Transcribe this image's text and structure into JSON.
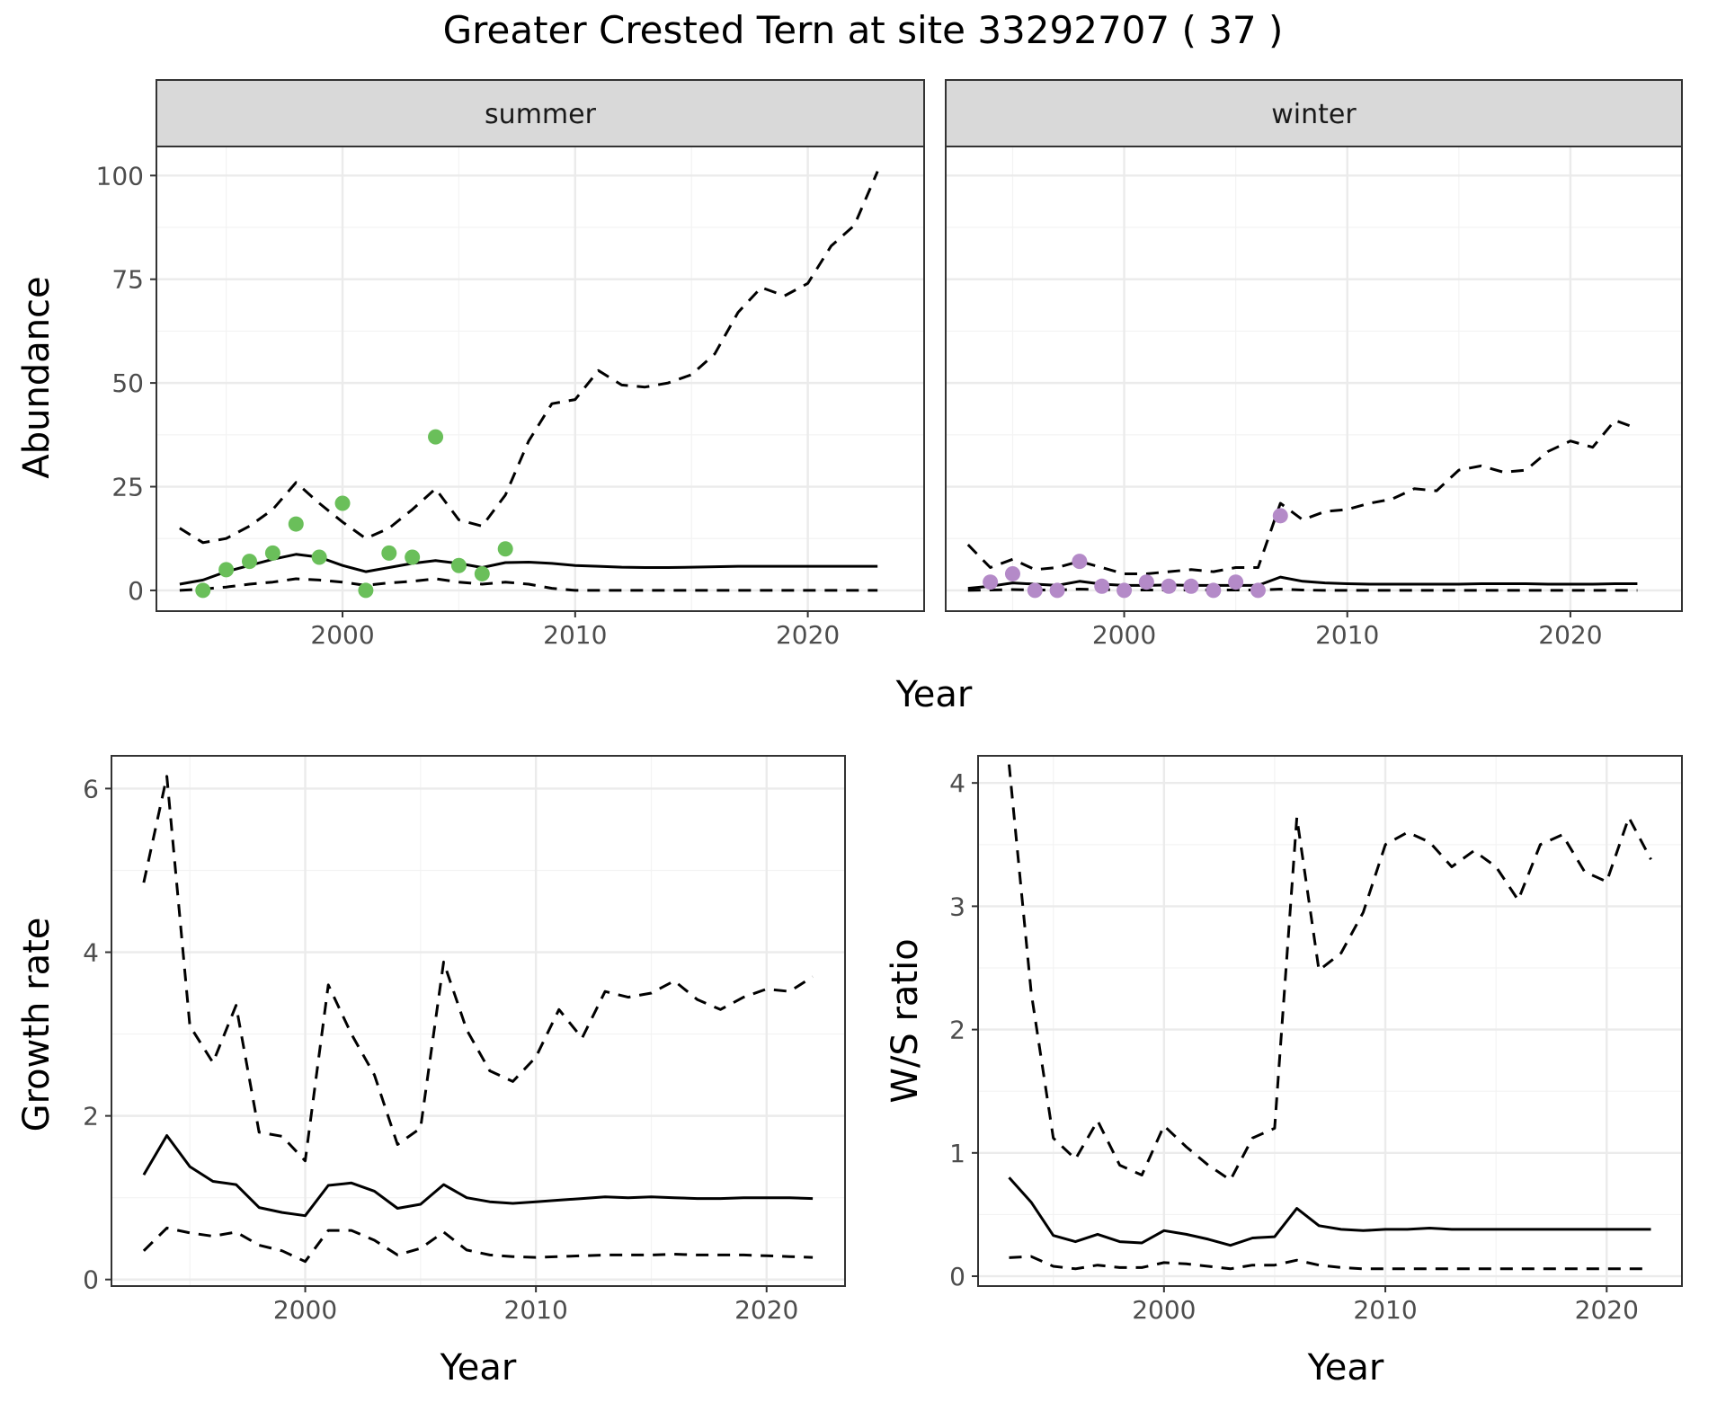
{
  "title": "Greater Crested Tern at site 33292707 ( 37 )",
  "colors": {
    "summer_points": "#6abf5a",
    "winter_points": "#b48ac8",
    "lines": "#000000"
  },
  "chart_data": [
    {
      "type": "line",
      "id": "abundance",
      "ylabel": "Abundance",
      "xlabel": "Year",
      "xlim": [
        1992,
        2025
      ],
      "ylim": [
        -5,
        107
      ],
      "x_ticks": [
        2000,
        2010,
        2020
      ],
      "y_ticks": [
        0,
        25,
        50,
        75,
        100
      ],
      "legend": "none",
      "facets": [
        {
          "strip": "summer",
          "point_color": "#6abf5a",
          "observations": {
            "x": [
              1994,
              1995,
              1996,
              1997,
              1998,
              1999,
              2000,
              2001,
              2002,
              2003,
              2004,
              2005,
              2006,
              2007
            ],
            "y": [
              0,
              5,
              7,
              9,
              16,
              8,
              21,
              0,
              9,
              8,
              37,
              6,
              4,
              10
            ]
          },
          "series": [
            {
              "role": "estimate",
              "x": [
                1993,
                1994,
                1995,
                1996,
                1997,
                1998,
                1999,
                2000,
                2001,
                2002,
                2003,
                2004,
                2005,
                2006,
                2007,
                2008,
                2009,
                2010,
                2011,
                2012,
                2013,
                2014,
                2015,
                2016,
                2017,
                2018,
                2019,
                2020,
                2021,
                2022,
                2023
              ],
              "y": [
                1.5,
                2.5,
                4.5,
                6,
                7.5,
                8.7,
                8,
                6,
                4.5,
                5.5,
                6.5,
                7.2,
                6.5,
                5.5,
                6.7,
                6.8,
                6.5,
                6,
                5.8,
                5.6,
                5.5,
                5.5,
                5.6,
                5.7,
                5.8,
                5.8,
                5.8,
                5.8,
                5.8,
                5.8,
                5.8
              ]
            },
            {
              "role": "upper",
              "x": [
                1993,
                1994,
                1995,
                1996,
                1997,
                1998,
                1999,
                2000,
                2001,
                2002,
                2003,
                2004,
                2005,
                2006,
                2007,
                2008,
                2009,
                2010,
                2011,
                2012,
                2013,
                2014,
                2015,
                2016,
                2017,
                2018,
                2019,
                2020,
                2021,
                2022,
                2023
              ],
              "y": [
                15,
                11.5,
                12.5,
                15.5,
                19.5,
                26,
                21,
                16.5,
                12.5,
                15,
                19.5,
                24.5,
                17,
                15.5,
                23,
                36,
                45,
                46,
                53,
                49.5,
                49,
                50,
                52,
                57,
                67,
                73,
                71,
                74,
                83,
                88,
                101
              ]
            },
            {
              "role": "lower",
              "x": [
                1993,
                1994,
                1995,
                1996,
                1997,
                1998,
                1999,
                2000,
                2001,
                2002,
                2003,
                2004,
                2005,
                2006,
                2007,
                2008,
                2009,
                2010,
                2011,
                2012,
                2013,
                2014,
                2015,
                2016,
                2017,
                2018,
                2019,
                2020,
                2021,
                2022,
                2023
              ],
              "y": [
                0,
                0.3,
                0.8,
                1.5,
                2,
                2.8,
                2.5,
                2,
                1.2,
                1.8,
                2.2,
                2.8,
                2,
                1.5,
                2,
                1.5,
                0.5,
                0,
                0,
                0,
                0,
                0,
                0,
                0,
                0,
                0,
                0,
                0,
                0,
                0,
                0
              ]
            }
          ]
        },
        {
          "strip": "winter",
          "point_color": "#b48ac8",
          "observations": {
            "x": [
              1994,
              1995,
              1996,
              1997,
              1998,
              1999,
              2000,
              2001,
              2002,
              2003,
              2004,
              2005,
              2006,
              2007
            ],
            "y": [
              2,
              4,
              0,
              0,
              7,
              1,
              0,
              2,
              1,
              1,
              0,
              2,
              0,
              18
            ]
          },
          "series": [
            {
              "role": "estimate",
              "x": [
                1993,
                1994,
                1995,
                1996,
                1997,
                1998,
                1999,
                2000,
                2001,
                2002,
                2003,
                2004,
                2005,
                2006,
                2007,
                2008,
                2009,
                2010,
                2011,
                2012,
                2013,
                2014,
                2015,
                2016,
                2017,
                2018,
                2019,
                2020,
                2021,
                2022,
                2023
              ],
              "y": [
                0.5,
                1,
                1.8,
                1.5,
                1.2,
                2.2,
                1.5,
                1.2,
                1.2,
                1.3,
                1.2,
                1.2,
                1.2,
                1.2,
                3.2,
                2.2,
                1.8,
                1.6,
                1.5,
                1.5,
                1.5,
                1.5,
                1.5,
                1.6,
                1.6,
                1.6,
                1.5,
                1.5,
                1.5,
                1.6,
                1.6
              ]
            },
            {
              "role": "upper",
              "x": [
                1993,
                1994,
                1995,
                1996,
                1997,
                1998,
                1999,
                2000,
                2001,
                2002,
                2003,
                2004,
                2005,
                2006,
                2007,
                2008,
                2009,
                2010,
                2011,
                2012,
                2013,
                2014,
                2015,
                2016,
                2017,
                2018,
                2019,
                2020,
                2021,
                2022,
                2023
              ],
              "y": [
                11,
                5.5,
                7.5,
                5,
                5.5,
                7,
                5.5,
                4,
                4,
                4.5,
                5,
                4.5,
                5.5,
                5.5,
                21,
                17,
                19,
                19.5,
                21,
                22,
                24.5,
                24,
                29,
                30,
                28.5,
                29,
                33.5,
                36,
                34.5,
                41,
                39
              ]
            },
            {
              "role": "lower",
              "x": [
                1993,
                1994,
                1995,
                1996,
                1997,
                1998,
                1999,
                2000,
                2001,
                2002,
                2003,
                2004,
                2005,
                2006,
                2007,
                2008,
                2009,
                2010,
                2011,
                2012,
                2013,
                2014,
                2015,
                2016,
                2017,
                2018,
                2019,
                2020,
                2021,
                2022,
                2023
              ],
              "y": [
                0,
                0.1,
                0.2,
                0.1,
                0.1,
                0.3,
                0.2,
                0.1,
                0.1,
                0.1,
                0.1,
                0.1,
                0.1,
                0.1,
                0.3,
                0.1,
                0,
                0,
                0,
                0,
                0,
                0,
                0,
                0,
                0,
                0,
                0,
                0,
                0,
                0,
                0
              ]
            }
          ]
        }
      ]
    },
    {
      "type": "line",
      "id": "growth",
      "ylabel": "Growth rate",
      "xlabel": "Year",
      "xlim": [
        1991.6,
        2023.4
      ],
      "ylim": [
        -0.08,
        6.4
      ],
      "x_ticks": [
        2000,
        2010,
        2020
      ],
      "y_ticks": [
        0,
        2,
        4,
        6
      ],
      "legend": "none",
      "series": [
        {
          "role": "estimate",
          "x": [
            1993,
            1994,
            1995,
            1996,
            1997,
            1998,
            1999,
            2000,
            2001,
            2002,
            2003,
            2004,
            2005,
            2006,
            2007,
            2008,
            2009,
            2010,
            2011,
            2012,
            2013,
            2014,
            2015,
            2016,
            2017,
            2018,
            2019,
            2020,
            2021,
            2022
          ],
          "y": [
            1.28,
            1.76,
            1.38,
            1.2,
            1.16,
            0.88,
            0.82,
            0.78,
            1.15,
            1.18,
            1.08,
            0.87,
            0.92,
            1.16,
            1.0,
            0.95,
            0.93,
            0.95,
            0.97,
            0.99,
            1.01,
            1.0,
            1.01,
            1.0,
            0.99,
            0.99,
            1.0,
            1.0,
            1.0,
            0.99
          ]
        },
        {
          "role": "upper",
          "x": [
            1993,
            1994,
            1995,
            1996,
            1997,
            1998,
            1999,
            2000,
            2001,
            2002,
            2003,
            2004,
            2005,
            2006,
            2007,
            2008,
            2009,
            2010,
            2011,
            2012,
            2013,
            2014,
            2015,
            2016,
            2017,
            2018,
            2019,
            2020,
            2021,
            2022
          ],
          "y": [
            4.85,
            6.15,
            3.1,
            2.65,
            3.35,
            1.8,
            1.75,
            1.45,
            3.6,
            3.0,
            2.5,
            1.65,
            1.85,
            3.88,
            3.05,
            2.55,
            2.42,
            2.72,
            3.3,
            2.95,
            3.52,
            3.45,
            3.5,
            3.65,
            3.42,
            3.3,
            3.45,
            3.55,
            3.52,
            3.7
          ]
        },
        {
          "role": "lower",
          "x": [
            1993,
            1994,
            1995,
            1996,
            1997,
            1998,
            1999,
            2000,
            2001,
            2002,
            2003,
            2004,
            2005,
            2006,
            2007,
            2008,
            2009,
            2010,
            2011,
            2012,
            2013,
            2014,
            2015,
            2016,
            2017,
            2018,
            2019,
            2020,
            2021,
            2022
          ],
          "y": [
            0.35,
            0.63,
            0.57,
            0.53,
            0.58,
            0.42,
            0.35,
            0.22,
            0.6,
            0.6,
            0.48,
            0.3,
            0.38,
            0.58,
            0.36,
            0.3,
            0.28,
            0.27,
            0.28,
            0.29,
            0.3,
            0.3,
            0.3,
            0.31,
            0.3,
            0.3,
            0.3,
            0.29,
            0.28,
            0.27
          ]
        }
      ]
    },
    {
      "type": "line",
      "id": "ratio",
      "ylabel": "W/S ratio",
      "xlabel": "Year",
      "xlim": [
        1991.6,
        2023.4
      ],
      "ylim": [
        -0.08,
        4.22
      ],
      "x_ticks": [
        2000,
        2010,
        2020
      ],
      "y_ticks": [
        0,
        1,
        2,
        3,
        4
      ],
      "legend": "none",
      "series": [
        {
          "role": "estimate",
          "x": [
            1993,
            1994,
            1995,
            1996,
            1997,
            1998,
            1999,
            2000,
            2001,
            2002,
            2003,
            2004,
            2005,
            2006,
            2007,
            2008,
            2009,
            2010,
            2011,
            2012,
            2013,
            2014,
            2015,
            2016,
            2017,
            2018,
            2019,
            2020,
            2021,
            2022
          ],
          "y": [
            0.8,
            0.6,
            0.33,
            0.28,
            0.34,
            0.28,
            0.27,
            0.37,
            0.34,
            0.3,
            0.25,
            0.31,
            0.32,
            0.55,
            0.41,
            0.38,
            0.37,
            0.38,
            0.38,
            0.39,
            0.38,
            0.38,
            0.38,
            0.38,
            0.38,
            0.38,
            0.38,
            0.38,
            0.38,
            0.38
          ]
        },
        {
          "role": "upper",
          "x": [
            1993,
            1994,
            1995,
            1996,
            1997,
            1998,
            1999,
            2000,
            2001,
            2002,
            2003,
            2004,
            2005,
            2006,
            2007,
            2008,
            2009,
            2010,
            2011,
            2012,
            2013,
            2014,
            2015,
            2016,
            2017,
            2018,
            2019,
            2020,
            2021,
            2022
          ],
          "y": [
            4.15,
            2.3,
            1.12,
            0.95,
            1.26,
            0.9,
            0.82,
            1.22,
            1.05,
            0.9,
            0.78,
            1.12,
            1.2,
            3.72,
            2.48,
            2.62,
            2.95,
            3.5,
            3.6,
            3.52,
            3.32,
            3.45,
            3.32,
            3.05,
            3.5,
            3.58,
            3.28,
            3.2,
            3.72,
            3.38
          ]
        },
        {
          "role": "lower",
          "x": [
            1993,
            1994,
            1995,
            1996,
            1997,
            1998,
            1999,
            2000,
            2001,
            2002,
            2003,
            2004,
            2005,
            2006,
            2007,
            2008,
            2009,
            2010,
            2011,
            2012,
            2013,
            2014,
            2015,
            2016,
            2017,
            2018,
            2019,
            2020,
            2021,
            2022
          ],
          "y": [
            0.15,
            0.16,
            0.08,
            0.06,
            0.09,
            0.07,
            0.07,
            0.11,
            0.1,
            0.08,
            0.06,
            0.09,
            0.09,
            0.13,
            0.09,
            0.07,
            0.06,
            0.06,
            0.06,
            0.06,
            0.06,
            0.06,
            0.06,
            0.06,
            0.06,
            0.06,
            0.06,
            0.06,
            0.06,
            0.06
          ]
        }
      ]
    }
  ]
}
